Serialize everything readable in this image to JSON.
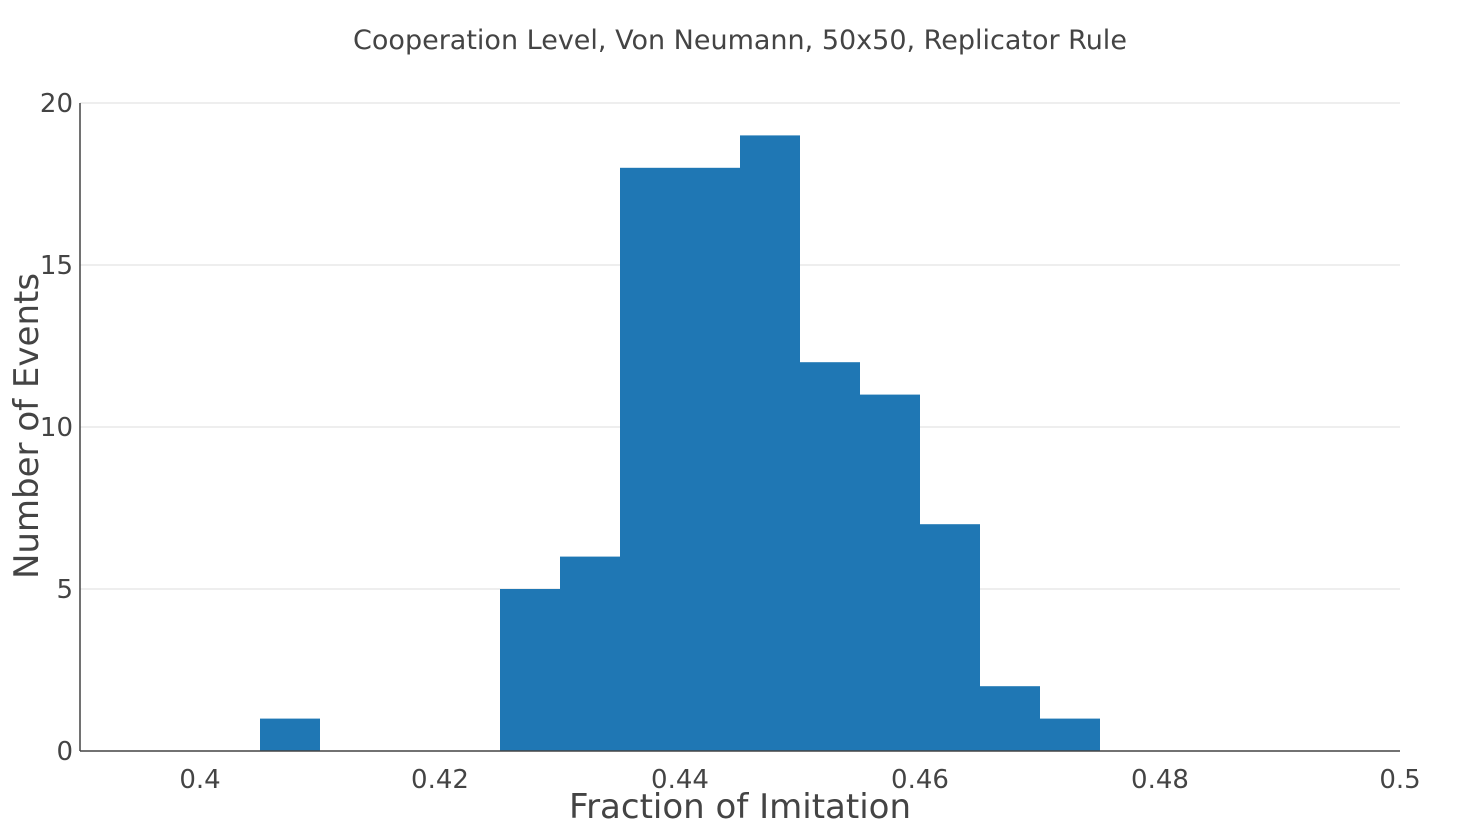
{
  "chart_data": {
    "type": "bar",
    "title": "Cooperation Level, Von Neumann, 50x50, Replicator Rule",
    "xlabel": "Fraction of Imitation",
    "ylabel": "Number of Events",
    "xlim": [
      0.39,
      0.5
    ],
    "ylim": [
      0,
      20
    ],
    "bin_width": 0.005,
    "grid": true,
    "x_ticks": [
      "0.4",
      "0.42",
      "0.44",
      "0.46",
      "0.48",
      "0.5"
    ],
    "y_ticks": [
      "0",
      "5",
      "10",
      "15",
      "20"
    ],
    "color": "#1f77b4",
    "bins": [
      {
        "start": 0.405,
        "end": 0.41,
        "count": 1
      },
      {
        "start": 0.425,
        "end": 0.43,
        "count": 5
      },
      {
        "start": 0.43,
        "end": 0.435,
        "count": 6
      },
      {
        "start": 0.435,
        "end": 0.44,
        "count": 18
      },
      {
        "start": 0.44,
        "end": 0.445,
        "count": 18
      },
      {
        "start": 0.445,
        "end": 0.45,
        "count": 19
      },
      {
        "start": 0.45,
        "end": 0.455,
        "count": 12
      },
      {
        "start": 0.455,
        "end": 0.46,
        "count": 11
      },
      {
        "start": 0.46,
        "end": 0.465,
        "count": 7
      },
      {
        "start": 0.465,
        "end": 0.47,
        "count": 2
      },
      {
        "start": 0.47,
        "end": 0.475,
        "count": 1
      }
    ]
  }
}
